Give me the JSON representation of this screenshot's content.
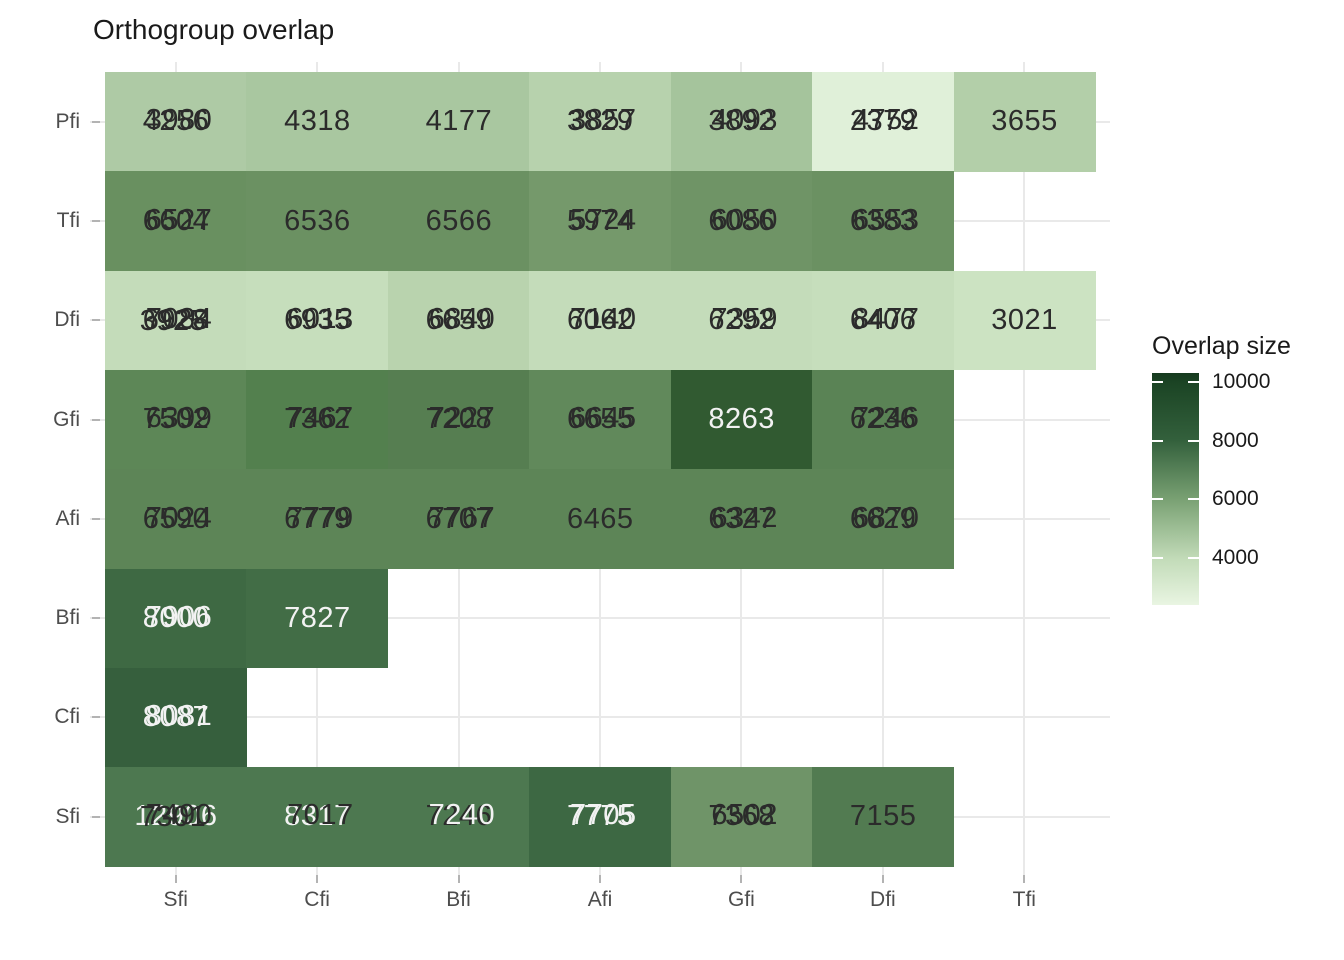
{
  "title": "Orthogroup overlap",
  "legend": {
    "title": "Overlap size",
    "ticks": [
      "10000",
      "8000",
      "6000",
      "4000"
    ],
    "gradient_top_color": "#163a1f",
    "gradient_bottom_color": "#e9f5e2"
  },
  "text_colors": {
    "dark": "#2b2b2b",
    "light": "#f2f2f2"
  },
  "chart_data": {
    "type": "heatmap",
    "title": "Orthogroup overlap",
    "x_categories": [
      "Sfi",
      "Cfi",
      "Bfi",
      "Afi",
      "Gfi",
      "Dfi",
      "Tfi"
    ],
    "y_categories": [
      "Pfi",
      "Tfi",
      "Dfi",
      "Gfi",
      "Afi",
      "Bfi",
      "Cfi",
      "Sfi"
    ],
    "colorscale": {
      "label": "Overlap size",
      "min": 2400,
      "max": 10300,
      "ticks": [
        10000,
        8000,
        6000,
        4000
      ]
    },
    "grid": true,
    "legend_position": "right",
    "note": "several tiles contain multiple overprinted value labels",
    "cells": [
      {
        "row": "Pfi",
        "col": "Sfi",
        "color": "#aecaa5",
        "labels": [
          {
            "t": "4256",
            "c": "dark"
          },
          {
            "t": "3980",
            "c": "dark"
          }
        ]
      },
      {
        "row": "Pfi",
        "col": "Cfi",
        "color": "#a9c7a0",
        "labels": [
          {
            "t": "4318",
            "c": "dark"
          }
        ]
      },
      {
        "row": "Pfi",
        "col": "Bfi",
        "color": "#a9c7a0",
        "labels": [
          {
            "t": "4177",
            "c": "dark"
          }
        ]
      },
      {
        "row": "Pfi",
        "col": "Afi",
        "color": "#b7d2ad",
        "labels": [
          {
            "t": "3829",
            "c": "dark"
          },
          {
            "t": "3857",
            "c": "dark"
          }
        ]
      },
      {
        "row": "Pfi",
        "col": "Gfi",
        "color": "#a5c49c",
        "labels": [
          {
            "t": "3892",
            "c": "dark"
          },
          {
            "t": "4093",
            "c": "dark"
          }
        ]
      },
      {
        "row": "Pfi",
        "col": "Dfi",
        "color": "#e0f0d9",
        "labels": [
          {
            "t": "2379",
            "c": "dark"
          },
          {
            "t": "4752",
            "c": "dark"
          }
        ]
      },
      {
        "row": "Pfi",
        "col": "Tfi",
        "color": "#b3cfa9",
        "labels": [
          {
            "t": "3655",
            "c": "dark"
          }
        ]
      },
      {
        "row": "Tfi",
        "col": "Sfi",
        "color": "#699060",
        "labels": [
          {
            "t": "6604",
            "c": "dark"
          },
          {
            "t": "6527",
            "c": "dark"
          }
        ]
      },
      {
        "row": "Tfi",
        "col": "Cfi",
        "color": "#6b9162",
        "labels": [
          {
            "t": "6536",
            "c": "dark"
          }
        ]
      },
      {
        "row": "Tfi",
        "col": "Bfi",
        "color": "#6b9162",
        "labels": [
          {
            "t": "6566",
            "c": "dark"
          }
        ]
      },
      {
        "row": "Tfi",
        "col": "Afi",
        "color": "#75996b",
        "labels": [
          {
            "t": "5974",
            "c": "dark"
          },
          {
            "t": "5724",
            "c": "dark"
          }
        ]
      },
      {
        "row": "Tfi",
        "col": "Gfi",
        "color": "#6f9466",
        "labels": [
          {
            "t": "6086",
            "c": "dark"
          },
          {
            "t": "6050",
            "c": "dark"
          }
        ]
      },
      {
        "row": "Tfi",
        "col": "Dfi",
        "color": "#6b9162",
        "labels": [
          {
            "t": "6383",
            "c": "dark"
          },
          {
            "t": "6553",
            "c": "dark"
          }
        ]
      },
      {
        "row": "Dfi",
        "col": "Sfi",
        "color": "#c4dcba",
        "labels": [
          {
            "t": "6928",
            "c": "dark"
          },
          {
            "t": "7084",
            "c": "dark"
          },
          {
            "t": "3925",
            "c": "dark"
          }
        ]
      },
      {
        "row": "Dfi",
        "col": "Cfi",
        "color": "#c6debc",
        "labels": [
          {
            "t": "6935",
            "c": "dark"
          },
          {
            "t": "6013",
            "c": "dark"
          }
        ]
      },
      {
        "row": "Dfi",
        "col": "Bfi",
        "color": "#b9d3ae",
        "labels": [
          {
            "t": "6659",
            "c": "dark"
          },
          {
            "t": "6840",
            "c": "dark"
          }
        ]
      },
      {
        "row": "Dfi",
        "col": "Afi",
        "color": "#c4dcba",
        "labels": [
          {
            "t": "6062",
            "c": "dark"
          },
          {
            "t": "7140",
            "c": "dark"
          }
        ]
      },
      {
        "row": "Dfi",
        "col": "Gfi",
        "color": "#c4dcba",
        "labels": [
          {
            "t": "6292",
            "c": "dark"
          },
          {
            "t": "7359",
            "c": "dark"
          }
        ]
      },
      {
        "row": "Dfi",
        "col": "Dfi",
        "color": "#c6debc",
        "labels": [
          {
            "t": "6406",
            "c": "dark"
          },
          {
            "t": "8477",
            "c": "dark"
          }
        ]
      },
      {
        "row": "Dfi",
        "col": "Tfi",
        "color": "#cce3c2",
        "labels": [
          {
            "t": "3021",
            "c": "dark"
          }
        ]
      },
      {
        "row": "Gfi",
        "col": "Sfi",
        "color": "#5d8757",
        "labels": [
          {
            "t": "7502",
            "c": "dark"
          },
          {
            "t": "6399",
            "c": "dark"
          }
        ]
      },
      {
        "row": "Gfi",
        "col": "Cfi",
        "color": "#53804e",
        "labels": [
          {
            "t": "7362",
            "c": "dark"
          },
          {
            "t": "7467",
            "c": "dark"
          }
        ]
      },
      {
        "row": "Gfi",
        "col": "Bfi",
        "color": "#567e51",
        "labels": [
          {
            "t": "7208",
            "c": "dark"
          },
          {
            "t": "7227",
            "c": "dark"
          }
        ]
      },
      {
        "row": "Gfi",
        "col": "Afi",
        "color": "#61895b",
        "labels": [
          {
            "t": "6655",
            "c": "dark"
          },
          {
            "t": "6645",
            "c": "dark"
          }
        ]
      },
      {
        "row": "Gfi",
        "col": "Gfi",
        "color": "#315a31",
        "labels": [
          {
            "t": "8263",
            "c": "light"
          }
        ]
      },
      {
        "row": "Gfi",
        "col": "Dfi",
        "color": "#5a8355",
        "labels": [
          {
            "t": "6236",
            "c": "dark"
          },
          {
            "t": "7246",
            "c": "dark"
          }
        ]
      },
      {
        "row": "Afi",
        "col": "Sfi",
        "color": "#5d8557",
        "labels": [
          {
            "t": "6590",
            "c": "dark"
          },
          {
            "t": "7024",
            "c": "dark"
          }
        ]
      },
      {
        "row": "Afi",
        "col": "Cfi",
        "color": "#5d8557",
        "labels": [
          {
            "t": "6779",
            "c": "dark"
          },
          {
            "t": "7779",
            "c": "dark"
          }
        ]
      },
      {
        "row": "Afi",
        "col": "Bfi",
        "color": "#5d8557",
        "labels": [
          {
            "t": "6707",
            "c": "dark"
          },
          {
            "t": "7767",
            "c": "dark"
          }
        ]
      },
      {
        "row": "Afi",
        "col": "Afi",
        "color": "#5d8557",
        "labels": [
          {
            "t": "6465",
            "c": "dark"
          }
        ]
      },
      {
        "row": "Afi",
        "col": "Gfi",
        "color": "#5d8557",
        "labels": [
          {
            "t": "6327",
            "c": "dark"
          },
          {
            "t": "6342",
            "c": "dark"
          }
        ]
      },
      {
        "row": "Afi",
        "col": "Dfi",
        "color": "#5d8557",
        "labels": [
          {
            "t": "6629",
            "c": "dark"
          },
          {
            "t": "6870",
            "c": "dark"
          }
        ]
      },
      {
        "row": "Bfi",
        "col": "Sfi",
        "color": "#3e6943",
        "labels": [
          {
            "t": "8000",
            "c": "light"
          },
          {
            "t": "7906",
            "c": "light"
          }
        ]
      },
      {
        "row": "Bfi",
        "col": "Cfi",
        "color": "#426d46",
        "labels": [
          {
            "t": "7827",
            "c": "light"
          }
        ]
      },
      {
        "row": "Cfi",
        "col": "Sfi",
        "color": "#365f3d",
        "labels": [
          {
            "t": "8087",
            "c": "light"
          },
          {
            "t": "8081",
            "c": "light"
          }
        ]
      },
      {
        "row": "Sfi",
        "col": "Sfi",
        "color": "#4d7850",
        "labels": [
          {
            "t": "12906",
            "c": "light"
          },
          {
            "t": "7490",
            "c": "dark"
          },
          {
            "t": "7301",
            "c": "dark"
          }
        ]
      },
      {
        "row": "Sfi",
        "col": "Cfi",
        "color": "#4d7850",
        "labels": [
          {
            "t": "8317",
            "c": "light"
          },
          {
            "t": "7017",
            "c": "dark"
          }
        ]
      },
      {
        "row": "Sfi",
        "col": "Bfi",
        "color": "#4d7850",
        "labels": [
          {
            "t": "7246",
            "c": "dark"
          },
          {
            "t": "7240",
            "c": "light"
          }
        ]
      },
      {
        "row": "Sfi",
        "col": "Afi",
        "color": "#3d6843",
        "labels": [
          {
            "t": "7775",
            "c": "light"
          },
          {
            "t": "7705",
            "c": "light"
          }
        ]
      },
      {
        "row": "Sfi",
        "col": "Gfi",
        "color": "#6f9468",
        "labels": [
          {
            "t": "7368",
            "c": "dark"
          },
          {
            "t": "6502",
            "c": "dark"
          }
        ]
      },
      {
        "row": "Sfi",
        "col": "Dfi",
        "color": "#527b51",
        "labels": [
          {
            "t": "7155",
            "c": "dark"
          }
        ]
      }
    ]
  }
}
